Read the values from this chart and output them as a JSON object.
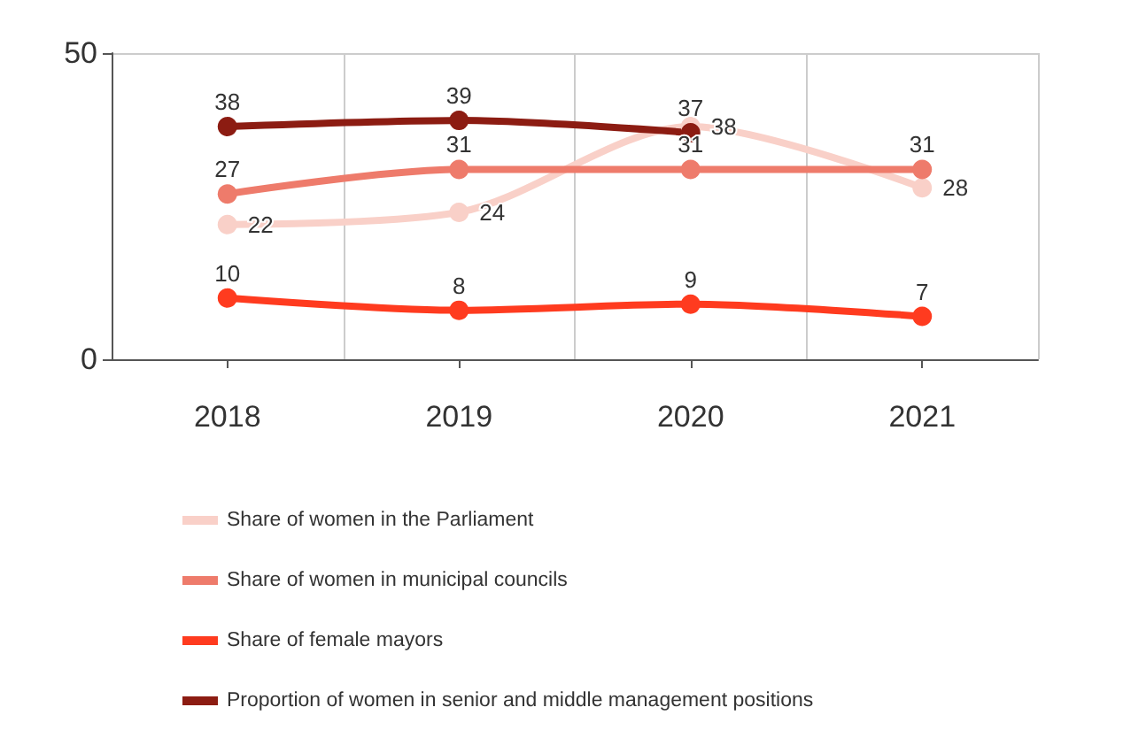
{
  "chart_data": {
    "type": "line",
    "categories": [
      "2018",
      "2019",
      "2020",
      "2021"
    ],
    "series": [
      {
        "name": "Share of women in the Parliament",
        "color": "#f9d0c8",
        "values": [
          22,
          24,
          38,
          28
        ]
      },
      {
        "name": "Share of women in municipal councils",
        "color": "#ee7b6b",
        "values": [
          27,
          31,
          31,
          31
        ]
      },
      {
        "name": "Share of female mayors",
        "color": "#ff3b1f",
        "values": [
          10,
          8,
          9,
          7
        ]
      },
      {
        "name": "Proportion of women in senior and middle management positions",
        "color": "#8c1c12",
        "values": [
          38,
          39,
          37,
          null
        ]
      }
    ],
    "ylim": [
      0,
      50
    ],
    "yticks": [
      0,
      50
    ],
    "grid": true,
    "legend": "bottom",
    "marker": "circle",
    "line_style": "solid",
    "data_labels": true
  }
}
